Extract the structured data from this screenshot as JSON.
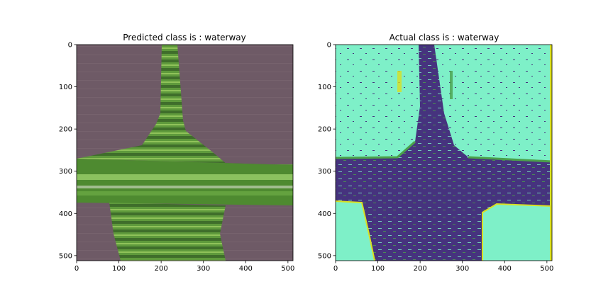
{
  "panels": [
    {
      "id": "predicted",
      "title": "Predicted class is : waterway",
      "x_ticks": [
        "0",
        "100",
        "200",
        "300",
        "400",
        "500"
      ],
      "y_ticks": [
        "0",
        "100",
        "200",
        "300",
        "400",
        "500"
      ]
    },
    {
      "id": "actual",
      "title": "Actual class is : waterway",
      "x_ticks": [
        "0",
        "100",
        "200",
        "300",
        "400",
        "500"
      ],
      "y_ticks": [
        "0",
        "100",
        "200",
        "300",
        "400",
        "500"
      ]
    }
  ],
  "colors": {
    "field_purple": "#6e5a66",
    "vegetation_green": "#4f8a34",
    "mask_background": "#7ef0c8",
    "mask_foreground": "#46337e",
    "mask_edge_yellow": "#d9e021",
    "mask_edge_green": "#4aa04a"
  }
}
